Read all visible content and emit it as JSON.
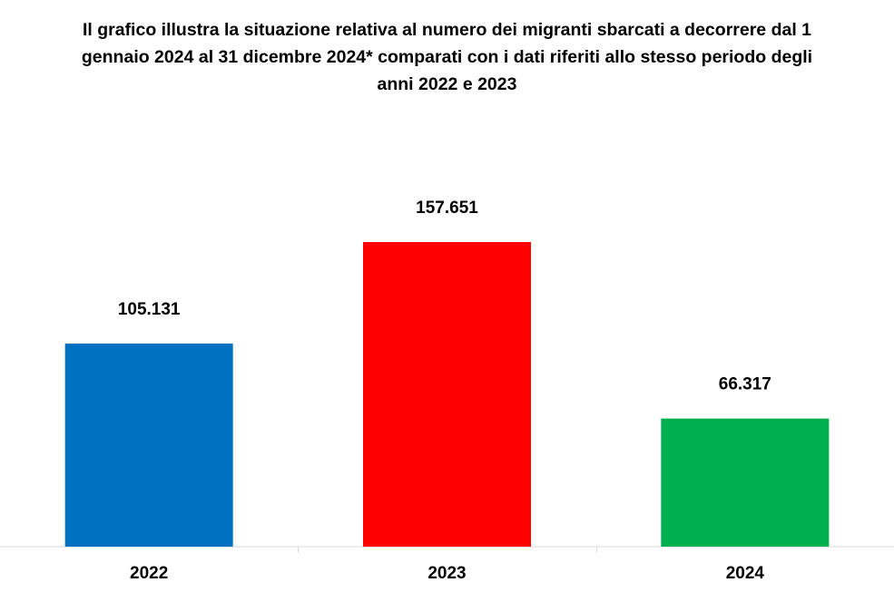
{
  "chart_data": {
    "type": "bar",
    "title_lines": [
      "Il grafico illustra la situazione relativa al numero dei migranti sbarcati a decorrere dal 1",
      "gennaio 2024 al 31 dicembre 2024* comparati con i dati riferiti allo stesso periodo degli",
      "anni 2022 e 2023"
    ],
    "categories": [
      "2022",
      "2023",
      "2024"
    ],
    "values": [
      105131,
      157651,
      66317
    ],
    "value_labels": [
      "105.131",
      "157.651",
      "66.317"
    ],
    "colors": [
      "#0070C0",
      "#FF0000",
      "#00B050"
    ],
    "xlabel": "",
    "ylabel": "",
    "ylim": [
      0,
      157651
    ],
    "grid": false,
    "legend": "none"
  }
}
